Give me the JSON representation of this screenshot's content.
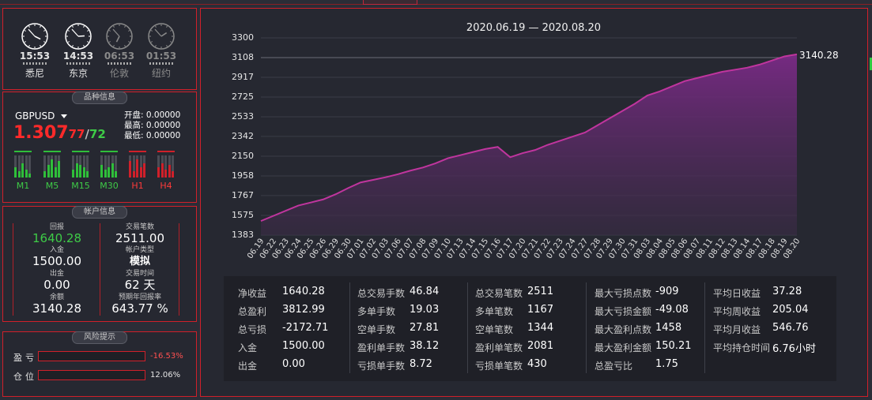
{
  "clocks": [
    {
      "time": "15:53",
      "city": "悉尼",
      "dim": false,
      "h": 15,
      "m": 53
    },
    {
      "time": "14:53",
      "city": "东京",
      "dim": false,
      "h": 14,
      "m": 53
    },
    {
      "time": "06:53",
      "city": "伦敦",
      "dim": true,
      "h": 6,
      "m": 53
    },
    {
      "time": "01:53",
      "city": "纽约",
      "dim": true,
      "h": 1,
      "m": 53
    }
  ],
  "symbol": {
    "section_title": "品种信息",
    "name": "GBPUSD",
    "price_main": "1.307",
    "price_ask": "77",
    "price_sep": "/",
    "price_bid": "72",
    "open": "开盘: 0.00000",
    "high": "最高: 0.00000",
    "low": "最低: 0.00000",
    "timeframes": [
      {
        "label": "M1",
        "color": "green",
        "bars": [
          0.5,
          0.3,
          0.7,
          0.4,
          0.2
        ]
      },
      {
        "label": "M5",
        "color": "green",
        "bars": [
          0.3,
          0.6,
          0.9,
          0.5,
          0.8
        ]
      },
      {
        "label": "M15",
        "color": "green",
        "bars": [
          0.4,
          0.7,
          0.6,
          0.5,
          0.3
        ]
      },
      {
        "label": "M30",
        "color": "green",
        "bars": [
          0.6,
          0.4,
          0.5,
          0.7,
          0.3
        ]
      },
      {
        "label": "H1",
        "color": "red",
        "bars": [
          0.8,
          0.3,
          0.9,
          0.5,
          0.7
        ]
      },
      {
        "label": "H4",
        "color": "red",
        "bars": [
          0.5,
          0.7,
          0.4,
          0.6,
          0.3
        ]
      }
    ]
  },
  "account": {
    "section_title": "帐户信息",
    "profit_label": "回报",
    "profit_value": "1640.28",
    "deposit_label": "入金",
    "deposit_value": "1500.00",
    "withdraw_label": "出金",
    "withdraw_value": "0.00",
    "balance_label": "余额",
    "balance_value": "3140.28",
    "trades_label": "交易笔数",
    "trades_value": "2511.00",
    "acct_type_label": "帐户类型",
    "acct_type_value": "模拟",
    "days_label": "交易时间",
    "days_value": "62 天",
    "annual_label": "预期年回报率",
    "annual_value": "643.77 %"
  },
  "risk": {
    "section_title": "风险提示",
    "pnl_label": "盈亏",
    "pnl_value": "-16.53%",
    "pos_label": "仓位",
    "pos_value": "12.06%"
  },
  "chart_data": {
    "type": "area",
    "title": "2020.06.19 — 2020.08.20",
    "ylim": [
      1383,
      3300
    ],
    "yticks": [
      "3300",
      "3108",
      "2917",
      "2725",
      "2533",
      "2342",
      "2150",
      "1958",
      "1767",
      "1575",
      "1383"
    ],
    "last_value_label": "3140.28",
    "x": [
      "06.19",
      "06.22",
      "06.23",
      "06.24",
      "06.25",
      "06.26",
      "06.29",
      "06.30",
      "07.01",
      "07.02",
      "07.03",
      "07.06",
      "07.07",
      "07.08",
      "07.09",
      "07.10",
      "07.13",
      "07.14",
      "07.15",
      "07.16",
      "07.17",
      "07.20",
      "07.21",
      "07.22",
      "07.23",
      "07.24",
      "07.27",
      "07.28",
      "07.29",
      "07.30",
      "07.31",
      "08.03",
      "08.04",
      "08.05",
      "08.06",
      "08.07",
      "08.11",
      "08.12",
      "08.13",
      "08.14",
      "08.17",
      "08.18",
      "08.19",
      "08.20"
    ],
    "values": [
      1520,
      1570,
      1620,
      1670,
      1700,
      1730,
      1780,
      1840,
      1895,
      1920,
      1945,
      1975,
      2010,
      2040,
      2080,
      2130,
      2160,
      2190,
      2220,
      2240,
      2140,
      2180,
      2210,
      2260,
      2300,
      2340,
      2380,
      2450,
      2520,
      2590,
      2660,
      2740,
      2780,
      2830,
      2880,
      2910,
      2940,
      2970,
      2990,
      3010,
      3040,
      3080,
      3120,
      3140.28
    ],
    "series_color": "#c0359e"
  },
  "stats": [
    [
      {
        "label": "净收益",
        "value": "1640.28"
      },
      {
        "label": "总盈利",
        "value": "3812.99"
      },
      {
        "label": "总亏损",
        "value": "-2172.71"
      },
      {
        "label": "入金",
        "value": "1500.00"
      },
      {
        "label": "出金",
        "value": "0.00"
      }
    ],
    [
      {
        "label": "总交易手数",
        "value": "46.84"
      },
      {
        "label": "多单手数",
        "value": "19.03"
      },
      {
        "label": "空单手数",
        "value": "27.81"
      },
      {
        "label": "盈利单手数",
        "value": "38.12"
      },
      {
        "label": "亏损单手数",
        "value": "8.72"
      }
    ],
    [
      {
        "label": "总交易笔数",
        "value": "2511"
      },
      {
        "label": "多单笔数",
        "value": "1167"
      },
      {
        "label": "空单笔数",
        "value": "1344"
      },
      {
        "label": "盈利单笔数",
        "value": "2081"
      },
      {
        "label": "亏损单笔数",
        "value": "430"
      }
    ],
    [
      {
        "label": "最大亏损点数",
        "value": "-909"
      },
      {
        "label": "最大亏损金额",
        "value": "-49.08"
      },
      {
        "label": "最大盈利点数",
        "value": "1458"
      },
      {
        "label": "最大盈利金额",
        "value": "150.21"
      },
      {
        "label": "总盈亏比",
        "value": "1.75"
      }
    ],
    [
      {
        "label": "平均日收益",
        "value": "37.28"
      },
      {
        "label": "平均周收益",
        "value": "205.04"
      },
      {
        "label": "平均月收益",
        "value": "546.76"
      },
      {
        "label": "平均持仓时间",
        "value": "6.76小时"
      }
    ]
  ]
}
